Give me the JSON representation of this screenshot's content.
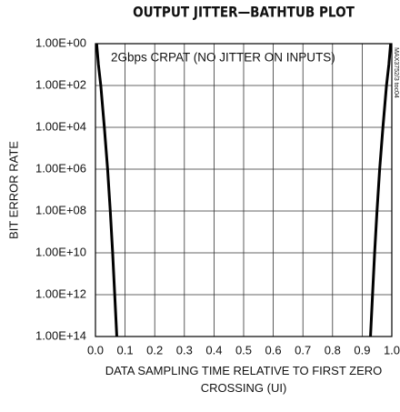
{
  "chart_data": {
    "type": "line",
    "title": "OUTPUT JITTER—BATHTUB PLOT",
    "annotation": "2Gbps CRPAT (NO JITTER ON INPUTS)",
    "side_note": "MAX3752/3 toc04",
    "xlabel": "DATA SAMPLING TIME RELATIVE TO FIRST ZERO CROSSING (UI)",
    "ylabel": "BIT ERROR RATE",
    "xlim": [
      0,
      1
    ],
    "xticks": [
      {
        "value": 0,
        "label": "0.0"
      },
      0.1,
      0.2,
      0.3,
      0.4,
      0.5,
      0.6,
      0.7,
      0.8,
      0.9,
      {
        "value": 1,
        "label": "1.0"
      }
    ],
    "ylim": [
      1,
      100000000000000
    ],
    "y_log": true,
    "y_inverted": true,
    "yticks": [
      {
        "value": 1,
        "label": "1.00E+00"
      },
      {
        "value": 100,
        "label": "1.00E+02"
      },
      {
        "value": 10000,
        "label": "1.00E+04"
      },
      {
        "value": 1000000,
        "label": "1.00E+06"
      },
      {
        "value": 100000000,
        "label": "1.00E+08"
      },
      {
        "value": 10000000000,
        "label": "1.00E+10"
      },
      {
        "value": 1000000000000,
        "label": "1.00E+12"
      },
      {
        "value": 100000000000000,
        "label": "1.00E+14"
      }
    ],
    "grid": true,
    "series": [
      {
        "color": "#000000",
        "x": [
          0.004,
          0.01,
          0.018,
          0.03,
          0.041,
          0.05,
          0.058,
          0.065,
          0.072
        ],
        "values": [
          1,
          10,
          100,
          10000,
          1000000,
          100000000,
          10000000000,
          1000000000000,
          100000000000000
        ]
      },
      {
        "color": "#000000",
        "x": [
          0.928,
          0.935,
          0.942,
          0.95,
          0.959,
          0.97,
          0.982,
          0.99,
          0.996
        ],
        "values": [
          100000000000000,
          1000000000000,
          10000000000,
          100000000,
          1000000,
          10000,
          100,
          10,
          1
        ]
      }
    ]
  }
}
